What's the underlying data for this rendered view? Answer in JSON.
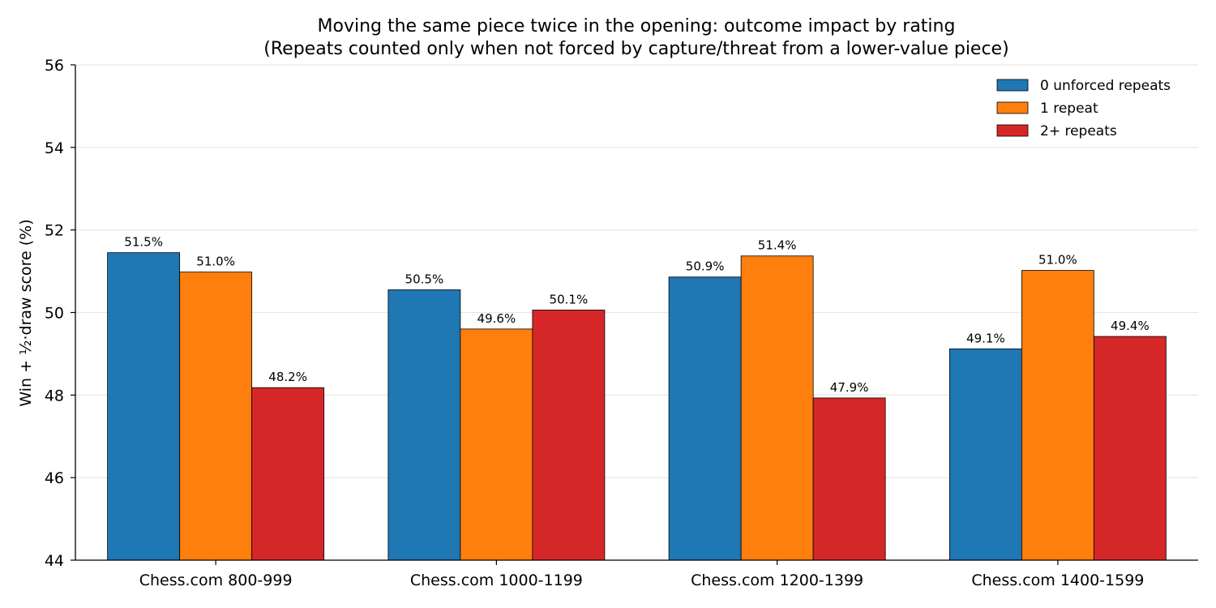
{
  "chart_data": {
    "type": "bar",
    "title": "Moving the same piece twice in the opening: outcome impact by rating",
    "subtitle": "(Repeats counted only when not forced by capture/threat from a lower-value piece)",
    "xlabel": "",
    "ylabel": "Win + ½·draw score (%)",
    "ylim": [
      44,
      56
    ],
    "yticks": [
      "44",
      "46",
      "48",
      "50",
      "52",
      "54",
      "56"
    ],
    "yticks_values": [
      44,
      46,
      48,
      50,
      52,
      54,
      56
    ],
    "grid": "horizontal",
    "legend_position": "top-right",
    "categories": [
      "Chess.com 800-999",
      "Chess.com 1000-1199",
      "Chess.com 1200-1399",
      "Chess.com 1400-1599"
    ],
    "series": [
      {
        "name": "0 unforced repeats",
        "color": "#1f77b4",
        "values": [
          51.45,
          50.55,
          50.86,
          49.12
        ],
        "labels": [
          "51.5%",
          "50.5%",
          "50.9%",
          "49.1%"
        ]
      },
      {
        "name": "1 repeat",
        "color": "#ff7f0e",
        "values": [
          50.98,
          49.6,
          51.37,
          51.02
        ],
        "labels": [
          "51.0%",
          "49.6%",
          "51.4%",
          "51.0%"
        ]
      },
      {
        "name": "2+ repeats",
        "color": "#d62728",
        "values": [
          48.18,
          50.06,
          47.93,
          49.42
        ],
        "labels": [
          "48.2%",
          "50.1%",
          "47.9%",
          "49.4%"
        ]
      }
    ]
  }
}
